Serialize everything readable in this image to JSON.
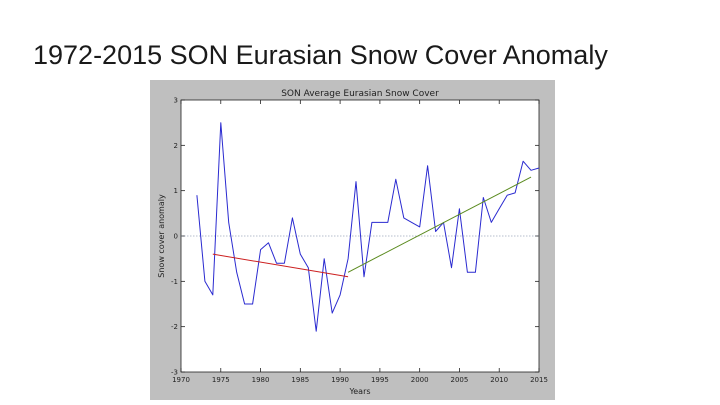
{
  "slide": {
    "title": "1972-2015 SON Eurasian Snow Cover Anomaly"
  },
  "chart_data": {
    "type": "line",
    "title": "SON Average Eurasian Snow Cover",
    "xlabel": "Years",
    "ylabel": "Snow cover anomaly",
    "xlim": [
      1970,
      2015
    ],
    "ylim": [
      -3,
      3
    ],
    "xticks": [
      1970,
      1975,
      1980,
      1985,
      1990,
      1995,
      2000,
      2005,
      2010,
      2015
    ],
    "yticks": [
      -3,
      -2,
      -1,
      0,
      1,
      2,
      3
    ],
    "xtick_labels": [
      "1970",
      "1975",
      "1980",
      "1985",
      "1990",
      "1995",
      "2000",
      "2005",
      "2010",
      "2015"
    ],
    "ytick_labels": [
      "-3",
      "-2",
      "-1",
      "0",
      "1",
      "2",
      "3"
    ],
    "grid": false,
    "series": [
      {
        "color": "#2a2ad0",
        "x": [
          1972,
          1973,
          1974,
          1975,
          1976,
          1977,
          1978,
          1979,
          1980,
          1981,
          1982,
          1983,
          1984,
          1985,
          1986,
          1987,
          1988,
          1989,
          1990,
          1991,
          1992,
          1993,
          1994,
          1995,
          1996,
          1997,
          1998,
          1999,
          2000,
          2001,
          2002,
          2003,
          2004,
          2005,
          2006,
          2007,
          2008,
          2009,
          2010,
          2011,
          2012,
          2013,
          2014,
          2015
        ],
        "y": [
          0.9,
          -1.0,
          -1.3,
          2.5,
          0.3,
          -0.8,
          -1.5,
          -1.5,
          -0.3,
          -0.15,
          -0.6,
          -0.6,
          0.4,
          -0.4,
          -0.7,
          -2.1,
          -0.5,
          -1.7,
          -1.3,
          -0.5,
          1.2,
          -0.9,
          0.3,
          0.3,
          0.3,
          1.25,
          0.4,
          0.3,
          0.2,
          1.55,
          0.1,
          0.3,
          -0.7,
          0.6,
          -0.8,
          -0.8,
          0.85,
          0.3,
          0.6,
          0.9,
          0.95,
          1.65,
          1.45,
          1.5
        ]
      }
    ],
    "reference_lines": [
      {
        "color": "#6e7e9a",
        "y": 0
      }
    ],
    "trend_lines": [
      {
        "color": "#cc1f1f",
        "x": [
          1974,
          1991
        ],
        "y": [
          -0.4,
          -0.9
        ]
      },
      {
        "color": "#5a8a1e",
        "x": [
          1991,
          2014
        ],
        "y": [
          -0.8,
          1.3
        ]
      }
    ]
  }
}
